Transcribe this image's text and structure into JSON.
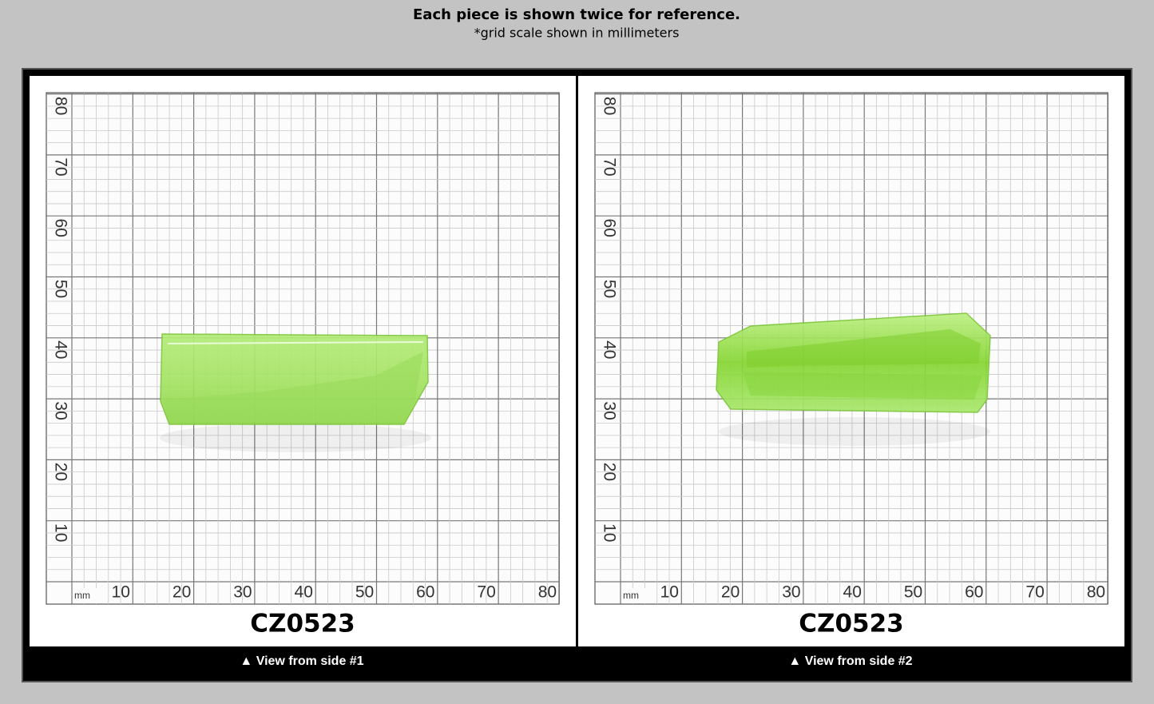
{
  "header": {
    "title": "Each piece is shown twice for reference.",
    "subtitle": "*grid scale shown in millimeters"
  },
  "panels": [
    {
      "label": "CZ0523",
      "caption": "▲ View from side #1",
      "grid": {
        "unit": "mm",
        "x_labels": [
          "10",
          "20",
          "30",
          "40",
          "50",
          "60",
          "70",
          "80"
        ],
        "y_labels": [
          "10",
          "20",
          "30",
          "40",
          "50",
          "60",
          "70",
          "80"
        ]
      }
    },
    {
      "label": "CZ0523",
      "caption": "▲ View from side #2",
      "grid": {
        "unit": "mm",
        "x_labels": [
          "10",
          "20",
          "30",
          "40",
          "50",
          "60",
          "70",
          "80"
        ],
        "y_labels": [
          "10",
          "20",
          "30",
          "40",
          "50",
          "60",
          "70",
          "80"
        ]
      }
    }
  ]
}
